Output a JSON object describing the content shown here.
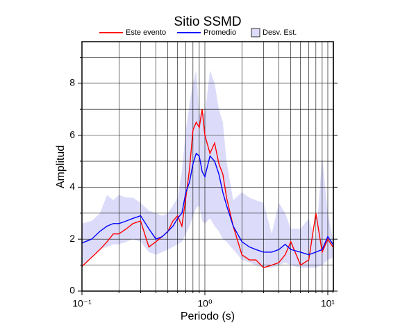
{
  "chart_data": {
    "type": "line",
    "title": "Sitio SSMD",
    "x_label": "Periodo (s)",
    "y_label": "Amplitud",
    "x": [
      0.1,
      0.12,
      0.14,
      0.16,
      0.18,
      0.2,
      0.23,
      0.26,
      0.3,
      0.35,
      0.4,
      0.45,
      0.5,
      0.55,
      0.6,
      0.65,
      0.7,
      0.75,
      0.8,
      0.85,
      0.9,
      0.95,
      1.0,
      1.1,
      1.2,
      1.3,
      1.4,
      1.5,
      1.7,
      2.0,
      2.3,
      2.6,
      3.0,
      3.5,
      4.0,
      4.5,
      5.0,
      6.0,
      7.0,
      8.0,
      9.0,
      10.0,
      11.0
    ],
    "series": [
      {
        "name": "Este evento",
        "color": "#ff0000",
        "values": [
          0.95,
          1.3,
          1.6,
          1.9,
          2.2,
          2.2,
          2.4,
          2.6,
          2.7,
          1.7,
          1.9,
          2.1,
          2.3,
          2.7,
          2.9,
          2.5,
          3.6,
          4.7,
          6.2,
          6.5,
          6.3,
          7.0,
          6.0,
          5.3,
          5.7,
          4.9,
          4.5,
          3.6,
          2.5,
          1.4,
          1.2,
          1.2,
          0.9,
          1.0,
          1.1,
          1.4,
          1.9,
          1.0,
          1.2,
          3.0,
          1.5,
          2.0,
          1.7
        ]
      },
      {
        "name": "Promedio",
        "color": "#0000ff",
        "values": [
          1.85,
          2.0,
          2.3,
          2.5,
          2.6,
          2.6,
          2.7,
          2.8,
          2.9,
          2.4,
          2.0,
          2.1,
          2.3,
          2.5,
          2.8,
          3.0,
          3.8,
          4.2,
          4.9,
          5.3,
          5.2,
          4.6,
          4.4,
          5.2,
          5.0,
          4.5,
          3.8,
          3.3,
          2.5,
          1.9,
          1.7,
          1.6,
          1.5,
          1.5,
          1.6,
          1.8,
          1.6,
          1.5,
          1.4,
          1.5,
          1.6,
          2.1,
          1.8
        ]
      },
      {
        "name": "Desv. Est.",
        "color": "#dcdcfa",
        "upper": [
          2.6,
          2.7,
          3.0,
          3.7,
          3.5,
          3.7,
          3.6,
          3.6,
          3.4,
          3.1,
          3.0,
          2.9,
          3.0,
          3.3,
          3.6,
          4.6,
          6.2,
          7.2,
          8.0,
          8.5,
          6.8,
          6.9,
          6.8,
          8.5,
          8.0,
          7.0,
          6.5,
          5.0,
          3.5,
          3.8,
          3.6,
          3.5,
          3.4,
          2.2,
          3.4,
          3.0,
          2.4,
          2.4,
          2.8,
          1.9,
          5.2,
          3.0,
          2.0
        ],
        "lower": [
          1.0,
          1.3,
          1.6,
          1.7,
          1.8,
          1.8,
          1.9,
          2.0,
          1.9,
          1.5,
          1.4,
          1.5,
          1.6,
          1.7,
          1.8,
          1.9,
          2.2,
          2.5,
          2.9,
          3.2,
          3.3,
          2.7,
          2.6,
          2.8,
          2.5,
          2.3,
          2.0,
          1.9,
          1.6,
          1.2,
          1.1,
          1.0,
          0.9,
          0.9,
          1.0,
          1.1,
          1.0,
          0.9,
          0.9,
          0.9,
          1.0,
          1.2,
          1.3
        ]
      }
    ],
    "xlog": true,
    "xlim": [
      0.1,
      11.1
    ],
    "ylim": [
      0,
      9.6
    ],
    "xticks": [
      {
        "value": 0.1,
        "label": "10⁻¹"
      },
      {
        "value": 1,
        "label": "10⁰"
      },
      {
        "value": 10,
        "label": "10¹"
      }
    ],
    "xminor_ticks": [
      0.2,
      0.3,
      0.4,
      0.5,
      0.6,
      0.7,
      0.8,
      0.9,
      2,
      3,
      4,
      5,
      6,
      7,
      8,
      9,
      11
    ],
    "yticks": [
      0,
      2,
      4,
      6,
      8
    ],
    "yminor_ticks": [
      1,
      3,
      5,
      7,
      9
    ],
    "grid": true,
    "legend": "top"
  }
}
